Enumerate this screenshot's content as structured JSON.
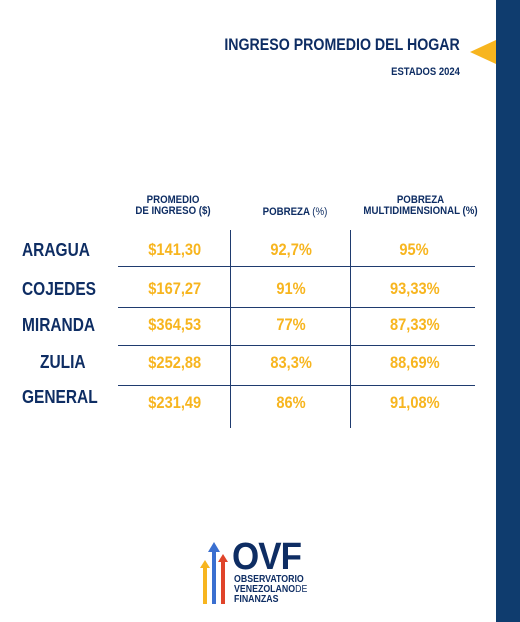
{
  "header": {
    "title": "INGRESO PROMEDIO DEL HOGAR",
    "subtitle": "ESTADOS 2024"
  },
  "table": {
    "columns": [
      {
        "line1": "PROMEDIO",
        "line2": "DE INGRESO ($)"
      },
      {
        "line1": "POBREZA",
        "unit": "(%)"
      },
      {
        "line1": "POBREZA",
        "line2": "MULTIDIMENSIONAL (%)"
      }
    ],
    "rows": [
      {
        "label": "ARAGUA",
        "income": "$141,30",
        "poverty": "92,7%",
        "multidim": "95%"
      },
      {
        "label": "COJEDES",
        "income": "$167,27",
        "poverty": "91%",
        "multidim": "93,33%"
      },
      {
        "label": "MIRANDA",
        "income": "$364,53",
        "poverty": "77%",
        "multidim": "87,33%"
      },
      {
        "label": "ZULIA",
        "income": "$252,88",
        "poverty": "83,3%",
        "multidim": "88,69%"
      },
      {
        "label": "GENERAL",
        "income": "$231,49",
        "poverty": "86%",
        "multidim": "91,08%"
      }
    ]
  },
  "logo": {
    "acronym": "OVF",
    "line1": "OBSERVATORIO",
    "line2a": "VENEZOLANO",
    "line2b": "DE",
    "line3": "FINANZAS"
  },
  "colors": {
    "navy": "#0e2d63",
    "sidebar": "#0f3c6e",
    "accent": "#f7b51f"
  }
}
